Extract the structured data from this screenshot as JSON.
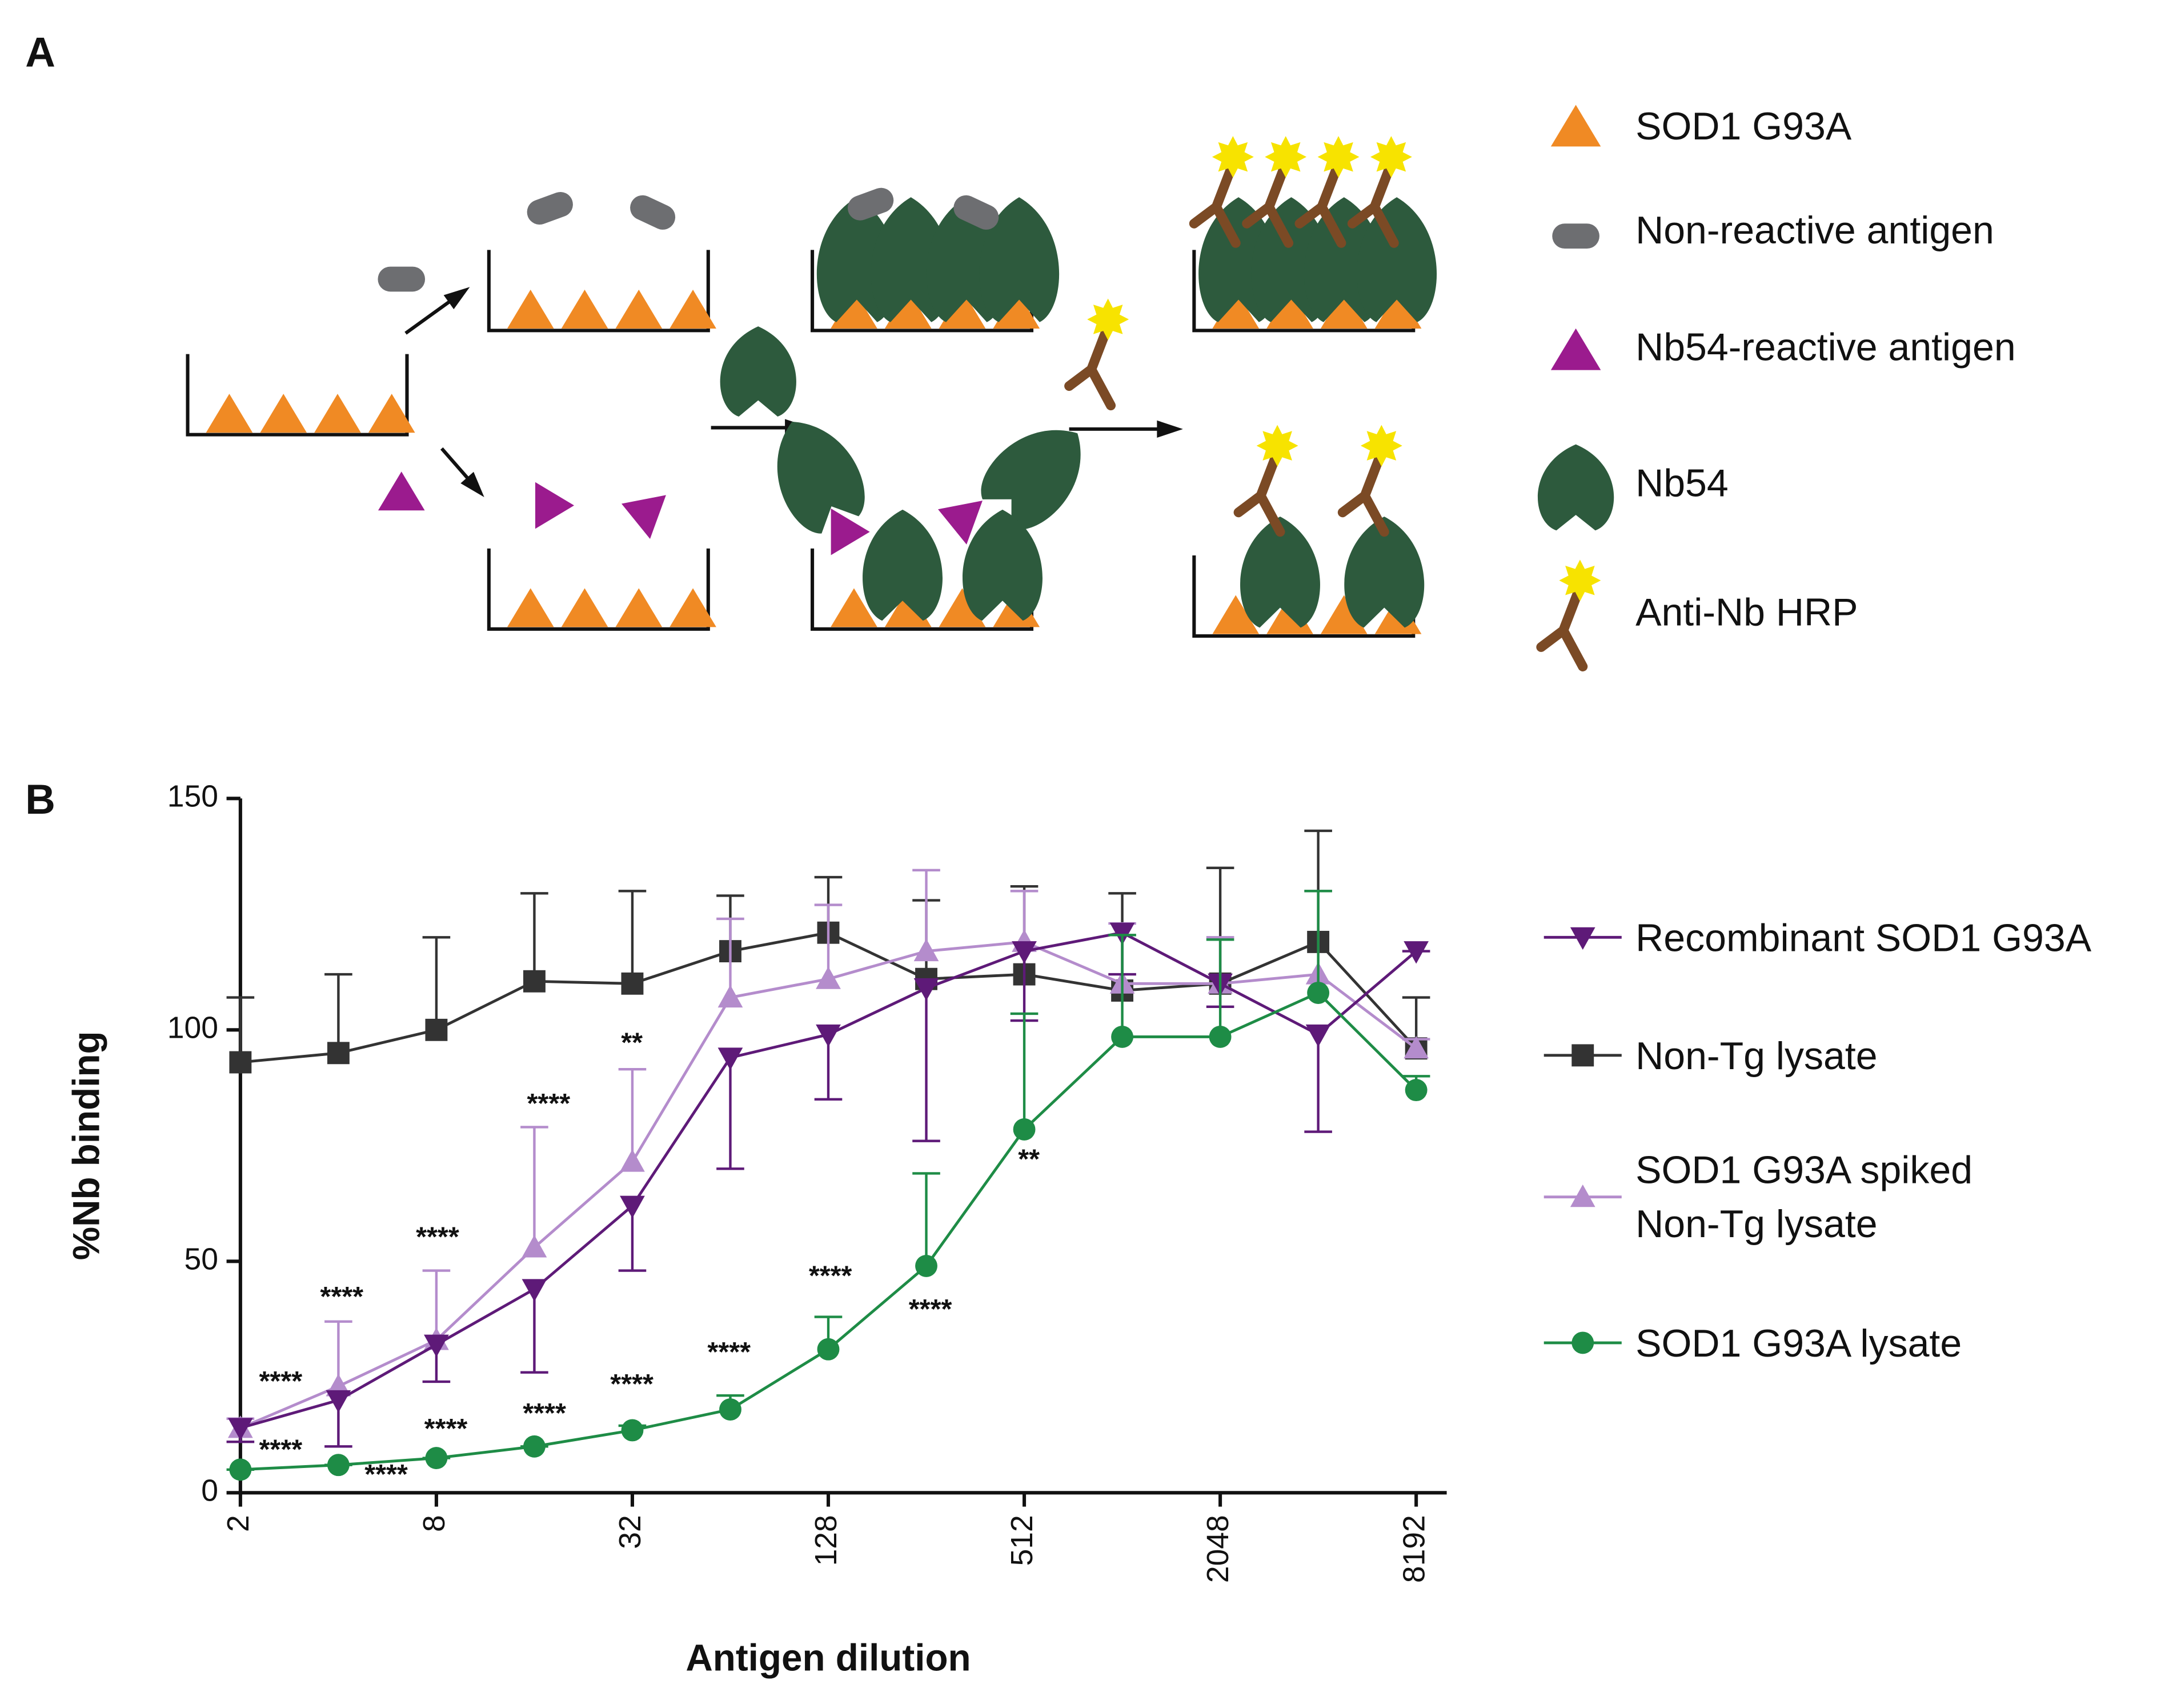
{
  "panel_a": {
    "label": "A",
    "legend": [
      "SOD1 G93A",
      "Non-reactive antigen",
      "Nb54-reactive antigen",
      "Nb54",
      "Anti-Nb HRP"
    ]
  },
  "panel_b": {
    "label": "B"
  },
  "chart_data": {
    "type": "line",
    "x_label": "Antigen dilution",
    "y_label": "%Nb binding",
    "x": [
      2,
      4,
      8,
      16,
      32,
      64,
      128,
      256,
      512,
      1024,
      2048,
      4096,
      8192
    ],
    "xlim": [
      2,
      8192
    ],
    "xscale": "log2",
    "xticks": [
      2,
      8,
      32,
      128,
      512,
      2048,
      8192
    ],
    "ylim": [
      0,
      150
    ],
    "yticks": [
      0,
      50,
      100,
      150
    ],
    "series": [
      {
        "name": "Recombinant SOD1 G93A",
        "color": "#5e1a78",
        "marker": "triangle-down",
        "error_bars": "down",
        "values": [
          14,
          20,
          32,
          44,
          62,
          94,
          99,
          109,
          117,
          121,
          110,
          99,
          117
        ],
        "errors": [
          3,
          10,
          8,
          18,
          14,
          24,
          14,
          33,
          15,
          9,
          5,
          21,
          0
        ]
      },
      {
        "name": "Non-Tg lysate",
        "color": "#333333",
        "marker": "square",
        "error_bars": "up",
        "values": [
          93,
          95,
          100,
          110.5,
          110,
          117,
          121,
          111,
          112,
          108.5,
          110,
          119,
          96
        ],
        "errors": [
          14,
          17,
          20,
          19,
          20,
          12,
          12,
          17,
          19,
          21,
          25,
          24,
          11
        ]
      },
      {
        "name": "SOD1 G93A spiked Non-Tg lysate",
        "color": "#b48ccc",
        "marker": "triangle-up",
        "error_bars": "up",
        "values": [
          14,
          23,
          33,
          53,
          71.5,
          107,
          111,
          117,
          119,
          110,
          110,
          112,
          96
        ],
        "errors": [
          2,
          14,
          15,
          26,
          20,
          17,
          16,
          17.5,
          11,
          13,
          10,
          18,
          2
        ]
      },
      {
        "name": "SOD1 G93A lysate",
        "color": "#1e8c46",
        "marker": "circle",
        "error_bars": "up",
        "values": [
          5,
          6,
          7.5,
          10,
          13.5,
          18,
          31,
          49,
          78.5,
          98.5,
          98.5,
          108,
          87
        ],
        "errors": [
          0,
          0,
          0,
          0,
          1,
          3,
          7,
          20,
          25,
          22,
          21,
          22,
          3
        ]
      }
    ],
    "annotations": [
      "****",
      "****",
      "****",
      "****",
      "****",
      "****",
      "****",
      "****",
      "**",
      "****",
      "****",
      "****",
      "****",
      "**"
    ]
  }
}
